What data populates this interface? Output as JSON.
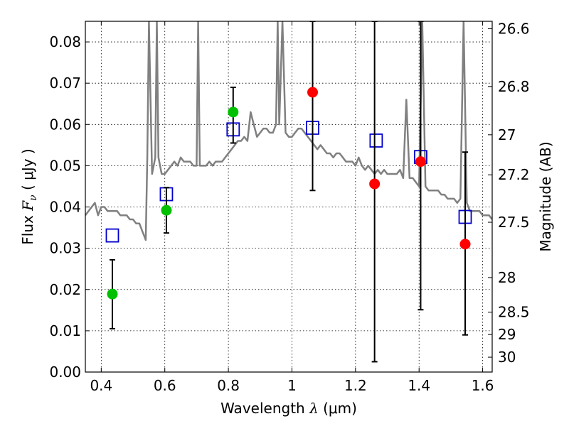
{
  "chart_data": {
    "type": "scatter",
    "xlabel_text": "Wavelength",
    "xlabel_symbol": "λ",
    "xlabel_unit": "(μm)",
    "ylabel_text": "Flux",
    "ylabel_symbol": "F",
    "ylabel_sub": "ν",
    "ylabel_unit": "( μJy )",
    "y2label": "Magnitude (AB)",
    "xlim": [
      0.35,
      1.63
    ],
    "ylim": [
      0.0,
      0.085
    ],
    "grid": true,
    "x_ticks": [
      0.4,
      0.6,
      0.8,
      1.0,
      1.2,
      1.4,
      1.6
    ],
    "x_tick_labels": [
      "0.4",
      "0.6",
      "0.8",
      "1",
      "1.2",
      "1.4",
      "1.6"
    ],
    "y_ticks": [
      0.0,
      0.01,
      0.02,
      0.03,
      0.04,
      0.05,
      0.06,
      0.07,
      0.08
    ],
    "y_tick_labels": [
      "0.00",
      "0.01",
      "0.02",
      "0.03",
      "0.04",
      "0.05",
      "0.06",
      "0.07",
      "0.08"
    ],
    "y2_ticks": [
      {
        "label": "26.6",
        "flux": 0.0832
      },
      {
        "label": "26.8",
        "flux": 0.0692
      },
      {
        "label": "27",
        "flux": 0.0575
      },
      {
        "label": "27.2",
        "flux": 0.0478
      },
      {
        "label": "27.5",
        "flux": 0.0363
      },
      {
        "label": "28",
        "flux": 0.0229
      },
      {
        "label": "28.5",
        "flux": 0.0145
      },
      {
        "label": "29",
        "flux": 0.0091
      },
      {
        "label": "30",
        "flux": 0.0036
      }
    ],
    "colors": {
      "sed": "#808080",
      "green": "#00c000",
      "red": "#ff0000",
      "model": "#0000cc",
      "errorbar": "#000000"
    },
    "series": [
      {
        "kind": "sed",
        "x": [
          0.35,
          0.36,
          0.37,
          0.38,
          0.39,
          0.4,
          0.41,
          0.42,
          0.43,
          0.44,
          0.45,
          0.46,
          0.47,
          0.48,
          0.49,
          0.5,
          0.51,
          0.52,
          0.53,
          0.535,
          0.54,
          0.545,
          0.55,
          0.56,
          0.57,
          0.575,
          0.58,
          0.59,
          0.6,
          0.61,
          0.62,
          0.63,
          0.64,
          0.65,
          0.66,
          0.67,
          0.68,
          0.69,
          0.7,
          0.705,
          0.71,
          0.72,
          0.73,
          0.74,
          0.75,
          0.76,
          0.77,
          0.78,
          0.79,
          0.8,
          0.81,
          0.82,
          0.83,
          0.84,
          0.85,
          0.86,
          0.87,
          0.88,
          0.89,
          0.9,
          0.91,
          0.92,
          0.93,
          0.94,
          0.95,
          0.955,
          0.96,
          0.97,
          0.98,
          0.99,
          1.0,
          1.01,
          1.02,
          1.03,
          1.04,
          1.05,
          1.06,
          1.07,
          1.08,
          1.09,
          1.1,
          1.11,
          1.12,
          1.13,
          1.14,
          1.15,
          1.16,
          1.17,
          1.18,
          1.19,
          1.2,
          1.21,
          1.22,
          1.23,
          1.24,
          1.25,
          1.26,
          1.27,
          1.28,
          1.29,
          1.3,
          1.31,
          1.32,
          1.33,
          1.34,
          1.35,
          1.36,
          1.37,
          1.38,
          1.39,
          1.4,
          1.41,
          1.42,
          1.43,
          1.44,
          1.45,
          1.46,
          1.47,
          1.48,
          1.49,
          1.5,
          1.51,
          1.52,
          1.53,
          1.54,
          1.55,
          1.56,
          1.57,
          1.58,
          1.59,
          1.6,
          1.61,
          1.62,
          1.63
        ],
        "y": [
          0.038,
          0.039,
          0.04,
          0.041,
          0.038,
          0.04,
          0.04,
          0.039,
          0.039,
          0.039,
          0.039,
          0.038,
          0.038,
          0.038,
          0.037,
          0.037,
          0.036,
          0.036,
          0.034,
          0.033,
          0.032,
          0.052,
          0.085,
          0.048,
          0.052,
          0.085,
          0.052,
          0.048,
          0.048,
          0.049,
          0.05,
          0.051,
          0.05,
          0.052,
          0.051,
          0.051,
          0.051,
          0.05,
          0.05,
          0.085,
          0.05,
          0.05,
          0.05,
          0.051,
          0.05,
          0.051,
          0.051,
          0.051,
          0.052,
          0.053,
          0.054,
          0.055,
          0.056,
          0.056,
          0.057,
          0.056,
          0.063,
          0.06,
          0.057,
          0.058,
          0.059,
          0.059,
          0.058,
          0.058,
          0.06,
          0.085,
          0.06,
          0.085,
          0.058,
          0.057,
          0.057,
          0.058,
          0.059,
          0.059,
          0.058,
          0.057,
          0.056,
          0.055,
          0.054,
          0.055,
          0.054,
          0.053,
          0.053,
          0.052,
          0.053,
          0.053,
          0.052,
          0.051,
          0.051,
          0.051,
          0.05,
          0.052,
          0.05,
          0.049,
          0.05,
          0.049,
          0.048,
          0.049,
          0.048,
          0.049,
          0.048,
          0.048,
          0.048,
          0.048,
          0.049,
          0.047,
          0.066,
          0.047,
          0.047,
          0.046,
          0.045,
          0.085,
          0.045,
          0.044,
          0.044,
          0.044,
          0.044,
          0.043,
          0.043,
          0.042,
          0.042,
          0.042,
          0.041,
          0.042,
          0.085,
          0.041,
          0.039,
          0.039,
          0.039,
          0.039,
          0.038,
          0.038,
          0.038,
          0.037
        ]
      },
      {
        "kind": "model",
        "name": "model-squares",
        "x": [
          0.435,
          0.605,
          0.815,
          1.065,
          1.265,
          1.405,
          1.545
        ],
        "y": [
          0.0331,
          0.0431,
          0.0588,
          0.0592,
          0.0561,
          0.0521,
          0.0376
        ]
      },
      {
        "kind": "measured",
        "name": "green-points",
        "color_key": "green",
        "x": [
          0.435,
          0.605,
          0.815
        ],
        "y": [
          0.0189,
          0.0392,
          0.063
        ],
        "yerr_low": [
          0.0105,
          0.0337,
          0.0555
        ],
        "yerr_high": [
          0.0272,
          0.0447,
          0.069
        ]
      },
      {
        "kind": "measured",
        "name": "red-points",
        "color_key": "red",
        "x": [
          1.065,
          1.26,
          1.405,
          1.545
        ],
        "y": [
          0.0678,
          0.0456,
          0.051,
          0.031
        ],
        "yerr_low": [
          0.044,
          0.0025,
          0.0151,
          0.009
        ],
        "yerr_high": [
          0.085,
          0.085,
          0.085,
          0.0533
        ]
      }
    ]
  }
}
